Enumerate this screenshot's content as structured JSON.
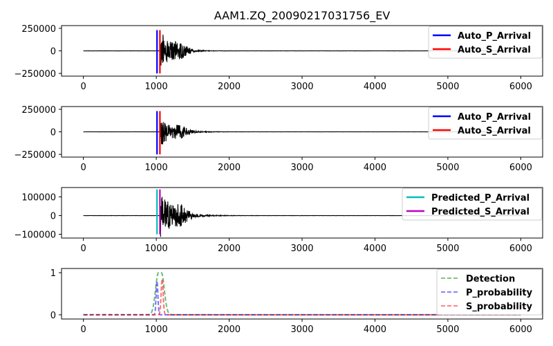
{
  "figure_title": "AAM1.ZQ_20090217031756_EV",
  "chart_data": [
    {
      "type": "line",
      "title": "AAM1.ZQ_20090217031756_EV",
      "xlim": [
        -300,
        6300
      ],
      "ylim": [
        -280000,
        280000
      ],
      "xticks": [
        0,
        1000,
        2000,
        3000,
        4000,
        5000,
        6000
      ],
      "yticks": [
        -250000,
        0,
        250000
      ],
      "ytick_labels": [
        "−250000",
        "0",
        "250000"
      ],
      "waveform": {
        "color": "#000000",
        "length": 6000,
        "onset": 1050,
        "peak_amplitude": 250000,
        "decay": 140
      },
      "vlines": [
        {
          "name": "Auto_P_Arrival",
          "x": 1010,
          "color": "#0000ff",
          "ymin": -250000,
          "ymax": 230000
        },
        {
          "name": "Auto_S_Arrival",
          "x": 1050,
          "color": "#ff0000",
          "ymin": -250000,
          "ymax": 230000
        }
      ],
      "legend": {
        "placement": "top-right",
        "entries": [
          {
            "label": "Auto_P_Arrival",
            "color": "#0000ff",
            "style": "solid"
          },
          {
            "label": "Auto_S_Arrival",
            "color": "#ff0000",
            "style": "solid"
          }
        ]
      }
    },
    {
      "type": "line",
      "title": "",
      "xlim": [
        -300,
        6300
      ],
      "ylim": [
        -280000,
        280000
      ],
      "xticks": [
        0,
        1000,
        2000,
        3000,
        4000,
        5000,
        6000
      ],
      "yticks": [
        -250000,
        0,
        250000
      ],
      "ytick_labels": [
        "−250000",
        "0",
        "250000"
      ],
      "waveform": {
        "color": "#000000",
        "length": 6000,
        "onset": 1050,
        "peak_amplitude": 170000,
        "decay": 170
      },
      "vlines": [
        {
          "name": "Auto_P_Arrival",
          "x": 1010,
          "color": "#0000ff",
          "ymin": -250000,
          "ymax": 230000
        },
        {
          "name": "Auto_S_Arrival",
          "x": 1050,
          "color": "#ff0000",
          "ymin": -250000,
          "ymax": 230000
        }
      ],
      "legend": {
        "placement": "top-right",
        "entries": [
          {
            "label": "Auto_P_Arrival",
            "color": "#0000ff",
            "style": "solid"
          },
          {
            "label": "Auto_S_Arrival",
            "color": "#ff0000",
            "style": "solid"
          }
        ]
      }
    },
    {
      "type": "line",
      "title": "",
      "xlim": [
        -300,
        6300
      ],
      "ylim": [
        -120000,
        150000
      ],
      "xticks": [
        0,
        1000,
        2000,
        3000,
        4000,
        5000,
        6000
      ],
      "yticks": [
        -100000,
        0,
        100000
      ],
      "ytick_labels": [
        "−100000",
        "0",
        "100000"
      ],
      "waveform": {
        "color": "#000000",
        "length": 6000,
        "onset": 1050,
        "peak_amplitude": 130000,
        "decay": 180
      },
      "vlines": [
        {
          "name": "Predicted_P_Arrival",
          "x": 1010,
          "color": "#00bfbf",
          "ymin": -100000,
          "ymax": 140000
        },
        {
          "name": "Predicted_S_Arrival",
          "x": 1050,
          "color": "#bf00bf",
          "ymin": -100000,
          "ymax": 140000
        }
      ],
      "legend": {
        "placement": "top-right",
        "entries": [
          {
            "label": "Predicted_P_Arrival",
            "color": "#00bfbf",
            "style": "solid"
          },
          {
            "label": "Predicted_S_Arrival",
            "color": "#bf00bf",
            "style": "solid"
          }
        ]
      }
    },
    {
      "type": "line",
      "title": "",
      "xlim": [
        -300,
        6300
      ],
      "ylim": [
        -0.1,
        1.1
      ],
      "xticks": [
        0,
        1000,
        2000,
        3000,
        4000,
        5000,
        6000
      ],
      "yticks": [
        0,
        1
      ],
      "ytick_labels": [
        "0",
        "1"
      ],
      "series": [
        {
          "name": "Detection",
          "color": "#008000",
          "style": "dashed",
          "center": 1050,
          "width": 40,
          "amplitude": 1.0,
          "flat_top": 40
        },
        {
          "name": "P_probability",
          "color": "#0000ff",
          "style": "dashed",
          "center": 1010,
          "width": 12,
          "amplitude": 0.8
        },
        {
          "name": "S_probability",
          "color": "#ff0000",
          "style": "dashed",
          "center": 1080,
          "width": 14,
          "amplitude": 0.85
        }
      ],
      "legend": {
        "placement": "top-right",
        "entries": [
          {
            "label": "Detection",
            "color": "#008000",
            "style": "dashed"
          },
          {
            "label": "P_probability",
            "color": "#0000ff",
            "style": "dashed"
          },
          {
            "label": "S_probability",
            "color": "#ff0000",
            "style": "dashed"
          }
        ]
      }
    }
  ]
}
